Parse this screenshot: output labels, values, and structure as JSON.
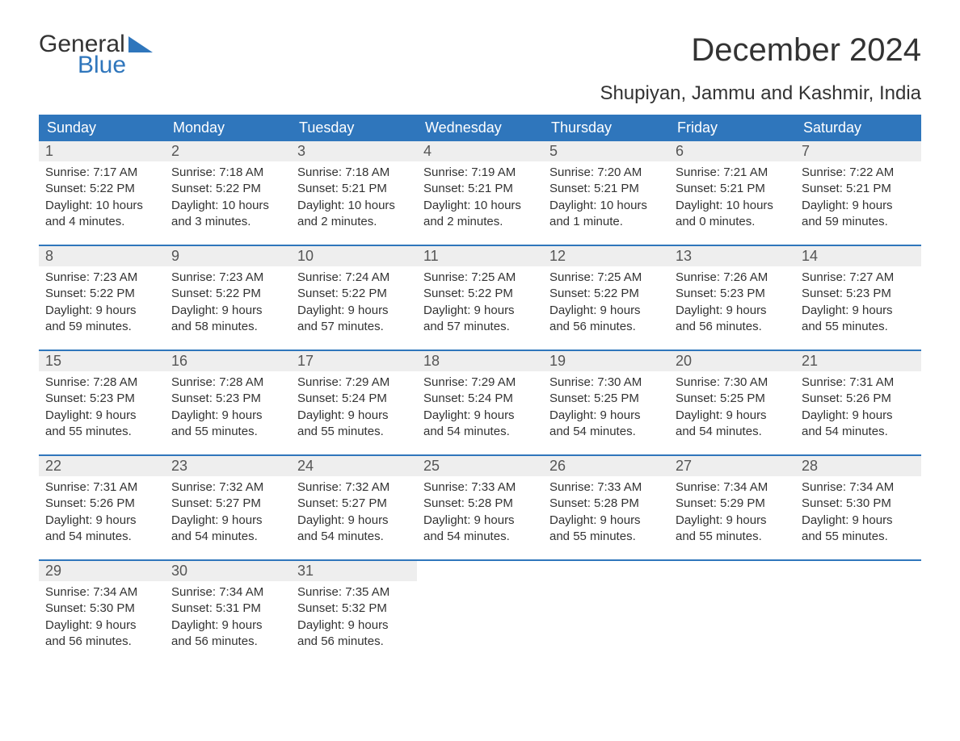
{
  "brand": {
    "word1": "General",
    "word2": "Blue",
    "accent_color": "#2f76bc"
  },
  "title": "December 2024",
  "location": "Shupiyan, Jammu and Kashmir, India",
  "header_bg": "#2f76bc",
  "header_fg": "#ffffff",
  "daynum_bg": "#eeeeee",
  "week_border": "#2f76bc",
  "day_names": [
    "Sunday",
    "Monday",
    "Tuesday",
    "Wednesday",
    "Thursday",
    "Friday",
    "Saturday"
  ],
  "weeks": [
    [
      {
        "n": "1",
        "sunrise": "Sunrise: 7:17 AM",
        "sunset": "Sunset: 5:22 PM",
        "d1": "Daylight: 10 hours",
        "d2": "and 4 minutes."
      },
      {
        "n": "2",
        "sunrise": "Sunrise: 7:18 AM",
        "sunset": "Sunset: 5:22 PM",
        "d1": "Daylight: 10 hours",
        "d2": "and 3 minutes."
      },
      {
        "n": "3",
        "sunrise": "Sunrise: 7:18 AM",
        "sunset": "Sunset: 5:21 PM",
        "d1": "Daylight: 10 hours",
        "d2": "and 2 minutes."
      },
      {
        "n": "4",
        "sunrise": "Sunrise: 7:19 AM",
        "sunset": "Sunset: 5:21 PM",
        "d1": "Daylight: 10 hours",
        "d2": "and 2 minutes."
      },
      {
        "n": "5",
        "sunrise": "Sunrise: 7:20 AM",
        "sunset": "Sunset: 5:21 PM",
        "d1": "Daylight: 10 hours",
        "d2": "and 1 minute."
      },
      {
        "n": "6",
        "sunrise": "Sunrise: 7:21 AM",
        "sunset": "Sunset: 5:21 PM",
        "d1": "Daylight: 10 hours",
        "d2": "and 0 minutes."
      },
      {
        "n": "7",
        "sunrise": "Sunrise: 7:22 AM",
        "sunset": "Sunset: 5:21 PM",
        "d1": "Daylight: 9 hours",
        "d2": "and 59 minutes."
      }
    ],
    [
      {
        "n": "8",
        "sunrise": "Sunrise: 7:23 AM",
        "sunset": "Sunset: 5:22 PM",
        "d1": "Daylight: 9 hours",
        "d2": "and 59 minutes."
      },
      {
        "n": "9",
        "sunrise": "Sunrise: 7:23 AM",
        "sunset": "Sunset: 5:22 PM",
        "d1": "Daylight: 9 hours",
        "d2": "and 58 minutes."
      },
      {
        "n": "10",
        "sunrise": "Sunrise: 7:24 AM",
        "sunset": "Sunset: 5:22 PM",
        "d1": "Daylight: 9 hours",
        "d2": "and 57 minutes."
      },
      {
        "n": "11",
        "sunrise": "Sunrise: 7:25 AM",
        "sunset": "Sunset: 5:22 PM",
        "d1": "Daylight: 9 hours",
        "d2": "and 57 minutes."
      },
      {
        "n": "12",
        "sunrise": "Sunrise: 7:25 AM",
        "sunset": "Sunset: 5:22 PM",
        "d1": "Daylight: 9 hours",
        "d2": "and 56 minutes."
      },
      {
        "n": "13",
        "sunrise": "Sunrise: 7:26 AM",
        "sunset": "Sunset: 5:23 PM",
        "d1": "Daylight: 9 hours",
        "d2": "and 56 minutes."
      },
      {
        "n": "14",
        "sunrise": "Sunrise: 7:27 AM",
        "sunset": "Sunset: 5:23 PM",
        "d1": "Daylight: 9 hours",
        "d2": "and 55 minutes."
      }
    ],
    [
      {
        "n": "15",
        "sunrise": "Sunrise: 7:28 AM",
        "sunset": "Sunset: 5:23 PM",
        "d1": "Daylight: 9 hours",
        "d2": "and 55 minutes."
      },
      {
        "n": "16",
        "sunrise": "Sunrise: 7:28 AM",
        "sunset": "Sunset: 5:23 PM",
        "d1": "Daylight: 9 hours",
        "d2": "and 55 minutes."
      },
      {
        "n": "17",
        "sunrise": "Sunrise: 7:29 AM",
        "sunset": "Sunset: 5:24 PM",
        "d1": "Daylight: 9 hours",
        "d2": "and 55 minutes."
      },
      {
        "n": "18",
        "sunrise": "Sunrise: 7:29 AM",
        "sunset": "Sunset: 5:24 PM",
        "d1": "Daylight: 9 hours",
        "d2": "and 54 minutes."
      },
      {
        "n": "19",
        "sunrise": "Sunrise: 7:30 AM",
        "sunset": "Sunset: 5:25 PM",
        "d1": "Daylight: 9 hours",
        "d2": "and 54 minutes."
      },
      {
        "n": "20",
        "sunrise": "Sunrise: 7:30 AM",
        "sunset": "Sunset: 5:25 PM",
        "d1": "Daylight: 9 hours",
        "d2": "and 54 minutes."
      },
      {
        "n": "21",
        "sunrise": "Sunrise: 7:31 AM",
        "sunset": "Sunset: 5:26 PM",
        "d1": "Daylight: 9 hours",
        "d2": "and 54 minutes."
      }
    ],
    [
      {
        "n": "22",
        "sunrise": "Sunrise: 7:31 AM",
        "sunset": "Sunset: 5:26 PM",
        "d1": "Daylight: 9 hours",
        "d2": "and 54 minutes."
      },
      {
        "n": "23",
        "sunrise": "Sunrise: 7:32 AM",
        "sunset": "Sunset: 5:27 PM",
        "d1": "Daylight: 9 hours",
        "d2": "and 54 minutes."
      },
      {
        "n": "24",
        "sunrise": "Sunrise: 7:32 AM",
        "sunset": "Sunset: 5:27 PM",
        "d1": "Daylight: 9 hours",
        "d2": "and 54 minutes."
      },
      {
        "n": "25",
        "sunrise": "Sunrise: 7:33 AM",
        "sunset": "Sunset: 5:28 PM",
        "d1": "Daylight: 9 hours",
        "d2": "and 54 minutes."
      },
      {
        "n": "26",
        "sunrise": "Sunrise: 7:33 AM",
        "sunset": "Sunset: 5:28 PM",
        "d1": "Daylight: 9 hours",
        "d2": "and 55 minutes."
      },
      {
        "n": "27",
        "sunrise": "Sunrise: 7:34 AM",
        "sunset": "Sunset: 5:29 PM",
        "d1": "Daylight: 9 hours",
        "d2": "and 55 minutes."
      },
      {
        "n": "28",
        "sunrise": "Sunrise: 7:34 AM",
        "sunset": "Sunset: 5:30 PM",
        "d1": "Daylight: 9 hours",
        "d2": "and 55 minutes."
      }
    ],
    [
      {
        "n": "29",
        "sunrise": "Sunrise: 7:34 AM",
        "sunset": "Sunset: 5:30 PM",
        "d1": "Daylight: 9 hours",
        "d2": "and 56 minutes."
      },
      {
        "n": "30",
        "sunrise": "Sunrise: 7:34 AM",
        "sunset": "Sunset: 5:31 PM",
        "d1": "Daylight: 9 hours",
        "d2": "and 56 minutes."
      },
      {
        "n": "31",
        "sunrise": "Sunrise: 7:35 AM",
        "sunset": "Sunset: 5:32 PM",
        "d1": "Daylight: 9 hours",
        "d2": "and 56 minutes."
      },
      null,
      null,
      null,
      null
    ]
  ]
}
